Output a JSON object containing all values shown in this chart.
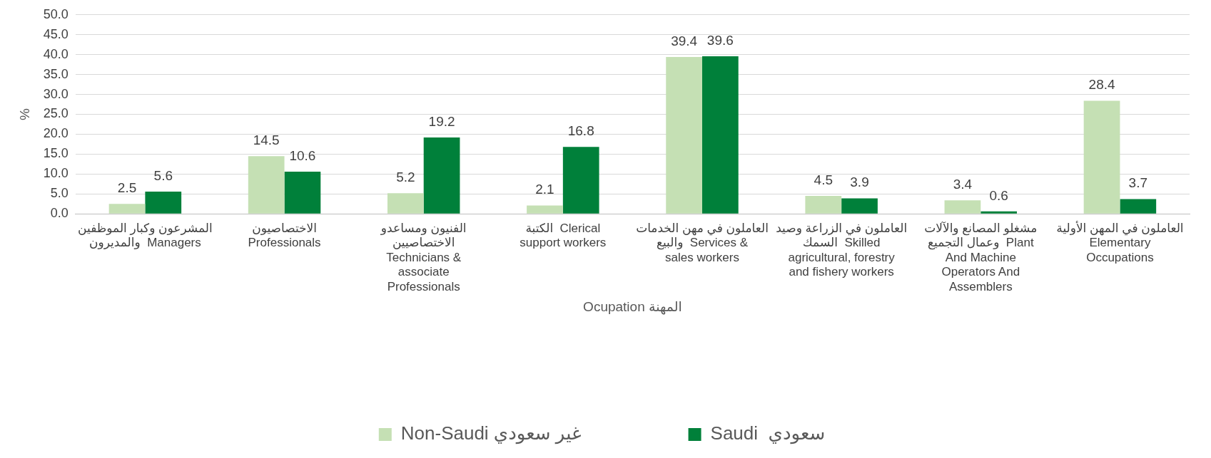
{
  "chart_data": {
    "type": "bar",
    "xlabel": "Ocupation المهنة",
    "ylabel": "%",
    "categories": [
      "المشرعون وكبار الموظفين\nوالمديرون  Managers",
      "الاختصاصيون\nProfessionals",
      "الفنيون ومساعدو\nالاختصاصيين\nTechnicians &\nassociate\nProfessionals",
      "الكتبة  Clerical\nsupport workers",
      "العاملون في مهن الخدمات\nوالبيع  Services &\nsales workers",
      "العاملون في الزراعة وصيد\nالسمك  Skilled\nagricultural, forestry\nand fishery workers",
      "مشغلو المصانع والآلات\nوعمال التجميع  Plant\nAnd Machine\nOperators And\nAssemblers",
      "العاملون في المهن الأولية\nElementary\nOccupations"
    ],
    "series": [
      {
        "name": "Non-Saudi غير سعودي",
        "color": "#c5e0b4",
        "values": [
          2.5,
          14.5,
          5.2,
          2.1,
          39.4,
          4.5,
          3.4,
          28.4
        ]
      },
      {
        "name": "Saudi  سعودي",
        "color": "#00803a",
        "values": [
          5.6,
          10.6,
          19.2,
          16.8,
          39.6,
          3.9,
          0.6,
          3.7
        ]
      }
    ],
    "ylim": [
      0,
      50
    ],
    "yticks": [
      {
        "value": 0,
        "label": "0.0"
      },
      {
        "value": 5,
        "label": "5.0"
      },
      {
        "value": 10,
        "label": "10.0"
      },
      {
        "value": 15,
        "label": "15.0"
      },
      {
        "value": 20,
        "label": "20.0"
      },
      {
        "value": 25,
        "label": "25.0"
      },
      {
        "value": 30,
        "label": "30.0"
      },
      {
        "value": 35,
        "label": "35.0"
      },
      {
        "value": 40,
        "label": "40.0"
      },
      {
        "value": 45,
        "label": "45.0"
      },
      {
        "value": 50,
        "label": "50.0"
      }
    ],
    "grid": "y",
    "legend": "bottom",
    "data_labels": true
  }
}
